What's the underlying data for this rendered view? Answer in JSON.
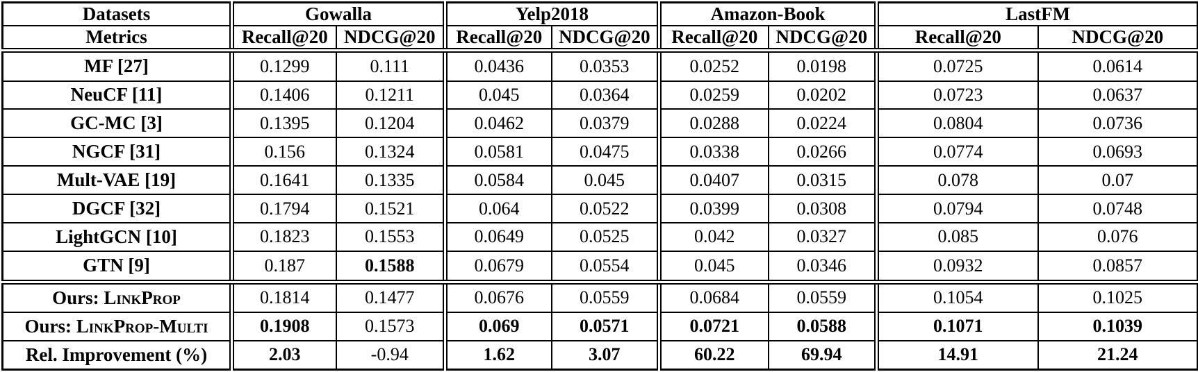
{
  "page": {
    "background_color": "#ffffff",
    "text_color": "#000000",
    "border_color": "#000000"
  },
  "table": {
    "corner": {
      "row1": "Datasets",
      "row2": "Metrics"
    },
    "groups": [
      {
        "label": "Gowalla",
        "metrics": [
          "Recall@20",
          "NDCG@20"
        ]
      },
      {
        "label": "Yelp2018",
        "metrics": [
          "Recall@20",
          "NDCG@20"
        ]
      },
      {
        "label": "Amazon-Book",
        "metrics": [
          "Recall@20",
          "NDCG@20"
        ]
      },
      {
        "label": "LastFM",
        "metrics": [
          "Recall@20",
          "NDCG@20"
        ]
      }
    ],
    "baseline_rows": [
      {
        "label": "MF [27]",
        "values": [
          "0.1299",
          "0.111",
          "0.0436",
          "0.0353",
          "0.0252",
          "0.0198",
          "0.0725",
          "0.0614"
        ],
        "bold": []
      },
      {
        "label": "NeuCF [11]",
        "values": [
          "0.1406",
          "0.1211",
          "0.045",
          "0.0364",
          "0.0259",
          "0.0202",
          "0.0723",
          "0.0637"
        ],
        "bold": []
      },
      {
        "label": "GC-MC [3]",
        "values": [
          "0.1395",
          "0.1204",
          "0.0462",
          "0.0379",
          "0.0288",
          "0.0224",
          "0.0804",
          "0.0736"
        ],
        "bold": []
      },
      {
        "label": "NGCF [31]",
        "values": [
          "0.156",
          "0.1324",
          "0.0581",
          "0.0475",
          "0.0338",
          "0.0266",
          "0.0774",
          "0.0693"
        ],
        "bold": []
      },
      {
        "label": "Mult-VAE [19]",
        "values": [
          "0.1641",
          "0.1335",
          "0.0584",
          "0.045",
          "0.0407",
          "0.0315",
          "0.078",
          "0.07"
        ],
        "bold": []
      },
      {
        "label": "DGCF [32]",
        "values": [
          "0.1794",
          "0.1521",
          "0.064",
          "0.0522",
          "0.0399",
          "0.0308",
          "0.0794",
          "0.0748"
        ],
        "bold": []
      },
      {
        "label": "LightGCN [10]",
        "values": [
          "0.1823",
          "0.1553",
          "0.0649",
          "0.0525",
          "0.042",
          "0.0327",
          "0.085",
          "0.076"
        ],
        "bold": []
      },
      {
        "label": "GTN [9]",
        "values": [
          "0.187",
          "0.1588",
          "0.0679",
          "0.0554",
          "0.045",
          "0.0346",
          "0.0932",
          "0.0857"
        ],
        "bold": [
          1
        ]
      }
    ],
    "ours_rows": [
      {
        "label_prefix": "Ours: ",
        "label_smallcaps": "LinkProp",
        "values": [
          "0.1814",
          "0.1477",
          "0.0676",
          "0.0559",
          "0.0684",
          "0.0559",
          "0.1054",
          "0.1025"
        ],
        "bold": []
      },
      {
        "label_prefix": "Ours: ",
        "label_smallcaps": "LinkProp-Multi",
        "values": [
          "0.1908",
          "0.1573",
          "0.069",
          "0.0571",
          "0.0721",
          "0.0588",
          "0.1071",
          "0.1039"
        ],
        "bold": [
          0,
          2,
          3,
          4,
          5,
          6,
          7
        ]
      },
      {
        "label": "Rel. Improvement (%)",
        "values": [
          "2.03",
          "-0.94",
          "1.62",
          "3.07",
          "60.22",
          "69.94",
          "14.91",
          "21.24"
        ],
        "bold": [
          0,
          2,
          3,
          4,
          5,
          6,
          7
        ]
      }
    ]
  }
}
